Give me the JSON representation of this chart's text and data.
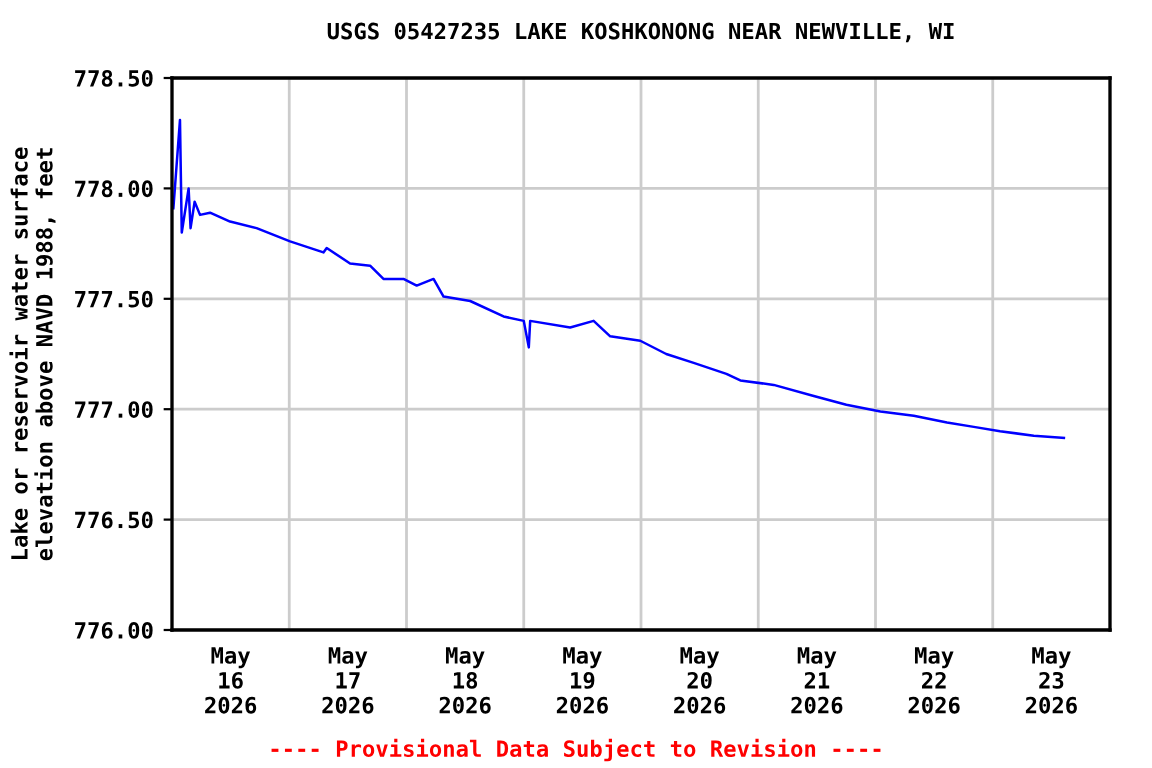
{
  "chart_data": {
    "type": "line",
    "title": "USGS 05427235 LAKE KOSHKONONG NEAR NEWVILLE, WI",
    "ylabel": "Lake or reservoir water surface\nelevation above NAVD 1988, feet",
    "annotations": [
      "---- Provisional Data Subject to Revision ----"
    ],
    "x": [
      "2026-05-16T00:17",
      "2026-05-16T01:38",
      "2026-05-16T02:00",
      "2026-05-16T03:24",
      "2026-05-16T03:48",
      "2026-05-16T04:38",
      "2026-05-16T05:44",
      "2026-05-16T07:47",
      "2026-05-16T11:53",
      "2026-05-16T17:19",
      "2026-05-17T00:10",
      "2026-05-17T07:00",
      "2026-05-17T07:40",
      "2026-05-17T12:27",
      "2026-05-17T16:33",
      "2026-05-17T19:17",
      "2026-05-17T23:23",
      "2026-05-18T02:05",
      "2026-05-18T05:32",
      "2026-05-18T07:35",
      "2026-05-18T13:02",
      "2026-05-18T19:52",
      "2026-05-19T00:00",
      "2026-05-19T01:02",
      "2026-05-19T01:19",
      "2026-05-19T09:30",
      "2026-05-19T14:18",
      "2026-05-19T17:42",
      "2026-05-19T23:51",
      "2026-05-20T05:10",
      "2026-05-20T10:47",
      "2026-05-20T17:29",
      "2026-05-20T20:20",
      "2026-05-21T03:10",
      "2026-05-21T11:22",
      "2026-05-21T18:02",
      "2026-05-22T01:00",
      "2026-05-22T07:50",
      "2026-05-22T14:38",
      "2026-05-22T20:07",
      "2026-05-23T01:30",
      "2026-05-23T08:24",
      "2026-05-23T14:34"
    ],
    "series": [
      {
        "color": "#0000ff",
        "values": [
          777.91,
          778.31,
          777.8,
          778.0,
          777.82,
          777.94,
          777.88,
          777.89,
          777.85,
          777.82,
          777.76,
          777.71,
          777.73,
          777.66,
          777.65,
          777.59,
          777.59,
          777.56,
          777.59,
          777.51,
          777.49,
          777.42,
          777.4,
          777.28,
          777.4,
          777.37,
          777.4,
          777.33,
          777.31,
          777.25,
          777.21,
          777.16,
          777.13,
          777.11,
          777.06,
          777.02,
          776.99,
          776.97,
          776.94,
          776.92,
          776.9,
          776.88,
          776.87
        ]
      }
    ],
    "xlim": [
      "2026-05-16T00:00",
      "2026-05-24T00:00"
    ],
    "xticks": [
      {
        "value": "2026-05-16T12:00",
        "label": "May\n16\n2026"
      },
      {
        "value": "2026-05-17T12:00",
        "label": "May\n17\n2026"
      },
      {
        "value": "2026-05-18T12:00",
        "label": "May\n18\n2026"
      },
      {
        "value": "2026-05-19T12:00",
        "label": "May\n19\n2026"
      },
      {
        "value": "2026-05-20T12:00",
        "label": "May\n20\n2026"
      },
      {
        "value": "2026-05-21T12:00",
        "label": "May\n21\n2026"
      },
      {
        "value": "2026-05-22T12:00",
        "label": "May\n22\n2026"
      },
      {
        "value": "2026-05-23T12:00",
        "label": "May\n23\n2026"
      },
      {
        "value": "2026-05-17T00:00",
        "label": null
      },
      {
        "value": "2026-05-18T00:00",
        "label": null
      },
      {
        "value": "2026-05-19T00:00",
        "label": null
      },
      {
        "value": "2026-05-20T00:00",
        "label": null
      },
      {
        "value": "2026-05-21T00:00",
        "label": null
      },
      {
        "value": "2026-05-22T00:00",
        "label": null
      },
      {
        "value": "2026-05-23T00:00",
        "label": null
      }
    ],
    "ylim": [
      776.0,
      778.5
    ],
    "yticks": [
      {
        "value": 776.0,
        "label": "776.00"
      },
      {
        "value": 776.5,
        "label": "776.50"
      },
      {
        "value": 777.0,
        "label": "777.00"
      },
      {
        "value": 777.5,
        "label": "777.50"
      },
      {
        "value": 778.0,
        "label": "778.00"
      },
      {
        "value": 778.5,
        "label": "778.50"
      }
    ],
    "grid": true,
    "legend": false,
    "marker": "none",
    "line_style": "solid"
  }
}
